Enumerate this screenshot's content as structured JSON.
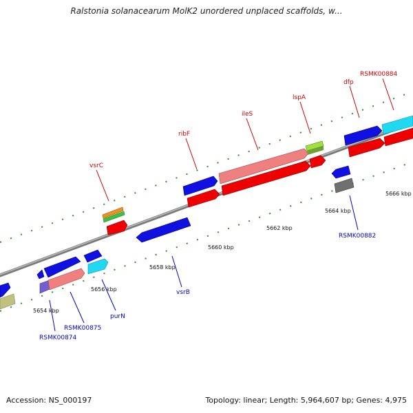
{
  "title": "Ralstonia solanacearum MolK2 unordered unplaced scaffolds, w...",
  "footer": {
    "accession": "Accession: NS_000197",
    "summary": "Topology: linear; Length: 5,964,607 bp; Genes: 4,975"
  },
  "colors": {
    "axis": "#8c8c8c",
    "tick": "#2e8b2e",
    "gene_label_top": "#cc0000",
    "gene_label_bottom": "#0000cc",
    "blue": "#1010e0",
    "red": "#ee0000",
    "pink": "#ee8080",
    "cyan": "#20d8f0",
    "orange": "#f09020",
    "green": "#40c040",
    "lime": "#a0e040",
    "olive": "#c0c080",
    "grey": "#707070",
    "purple": "#7060d0"
  },
  "scale_labels": [
    "5654 kbp",
    "5656 kbp",
    "5658 kbp",
    "5660 kbp",
    "5662 kbp",
    "5664 kbp",
    "5666 kbp"
  ],
  "gene_labels_top": [
    "vsrC",
    "ribF",
    "ileS",
    "lspA",
    "dfp",
    "RSMK00884"
  ],
  "gene_labels_bottom": [
    "RSMK00874",
    "RSMK00875",
    "purN",
    "vsrB",
    "RSMK00882"
  ],
  "features": [
    {
      "id": "f-olive-left",
      "color": "olive",
      "strand": "minus"
    },
    {
      "id": "f-blue-left",
      "color": "blue",
      "strand": "plus"
    },
    {
      "id": "f-small-blue",
      "color": "blue",
      "strand": "minus"
    },
    {
      "id": "f-blue-00875",
      "color": "blue",
      "strand": "plus"
    },
    {
      "id": "f-purple-00874",
      "color": "purple",
      "strand": "plus"
    },
    {
      "id": "f-pink-00875",
      "color": "pink",
      "strand": "plus"
    },
    {
      "id": "f-blue-purN",
      "color": "blue",
      "strand": "plus"
    },
    {
      "id": "f-cyan-purN",
      "color": "cyan",
      "strand": "plus"
    },
    {
      "id": "f-orange-vsrC",
      "color": "orange",
      "strand": "plus"
    },
    {
      "id": "f-green-vsrC",
      "color": "green",
      "strand": "plus"
    },
    {
      "id": "f-red-vsrC",
      "color": "red",
      "strand": "plus"
    },
    {
      "id": "f-blue-vsrB",
      "color": "blue",
      "strand": "minus"
    },
    {
      "id": "f-blue-ribF",
      "color": "blue",
      "strand": "plus"
    },
    {
      "id": "f-red-ribF",
      "color": "red",
      "strand": "plus"
    },
    {
      "id": "f-pink-ileS",
      "color": "pink",
      "strand": "plus"
    },
    {
      "id": "f-red-ileS",
      "color": "red",
      "strand": "plus"
    },
    {
      "id": "f-lime-lspA",
      "color": "lime",
      "strand": "plus"
    },
    {
      "id": "f-red-lspA",
      "color": "red",
      "strand": "plus"
    },
    {
      "id": "f-blue-00882",
      "color": "blue",
      "strand": "minus"
    },
    {
      "id": "f-grey-00882",
      "color": "grey",
      "strand": "plus"
    },
    {
      "id": "f-blue-dfp",
      "color": "blue",
      "strand": "plus"
    },
    {
      "id": "f-red-dfp",
      "color": "red",
      "strand": "plus"
    },
    {
      "id": "f-cyan-00884",
      "color": "cyan",
      "strand": "plus"
    },
    {
      "id": "f-red-00884",
      "color": "red",
      "strand": "plus"
    }
  ]
}
